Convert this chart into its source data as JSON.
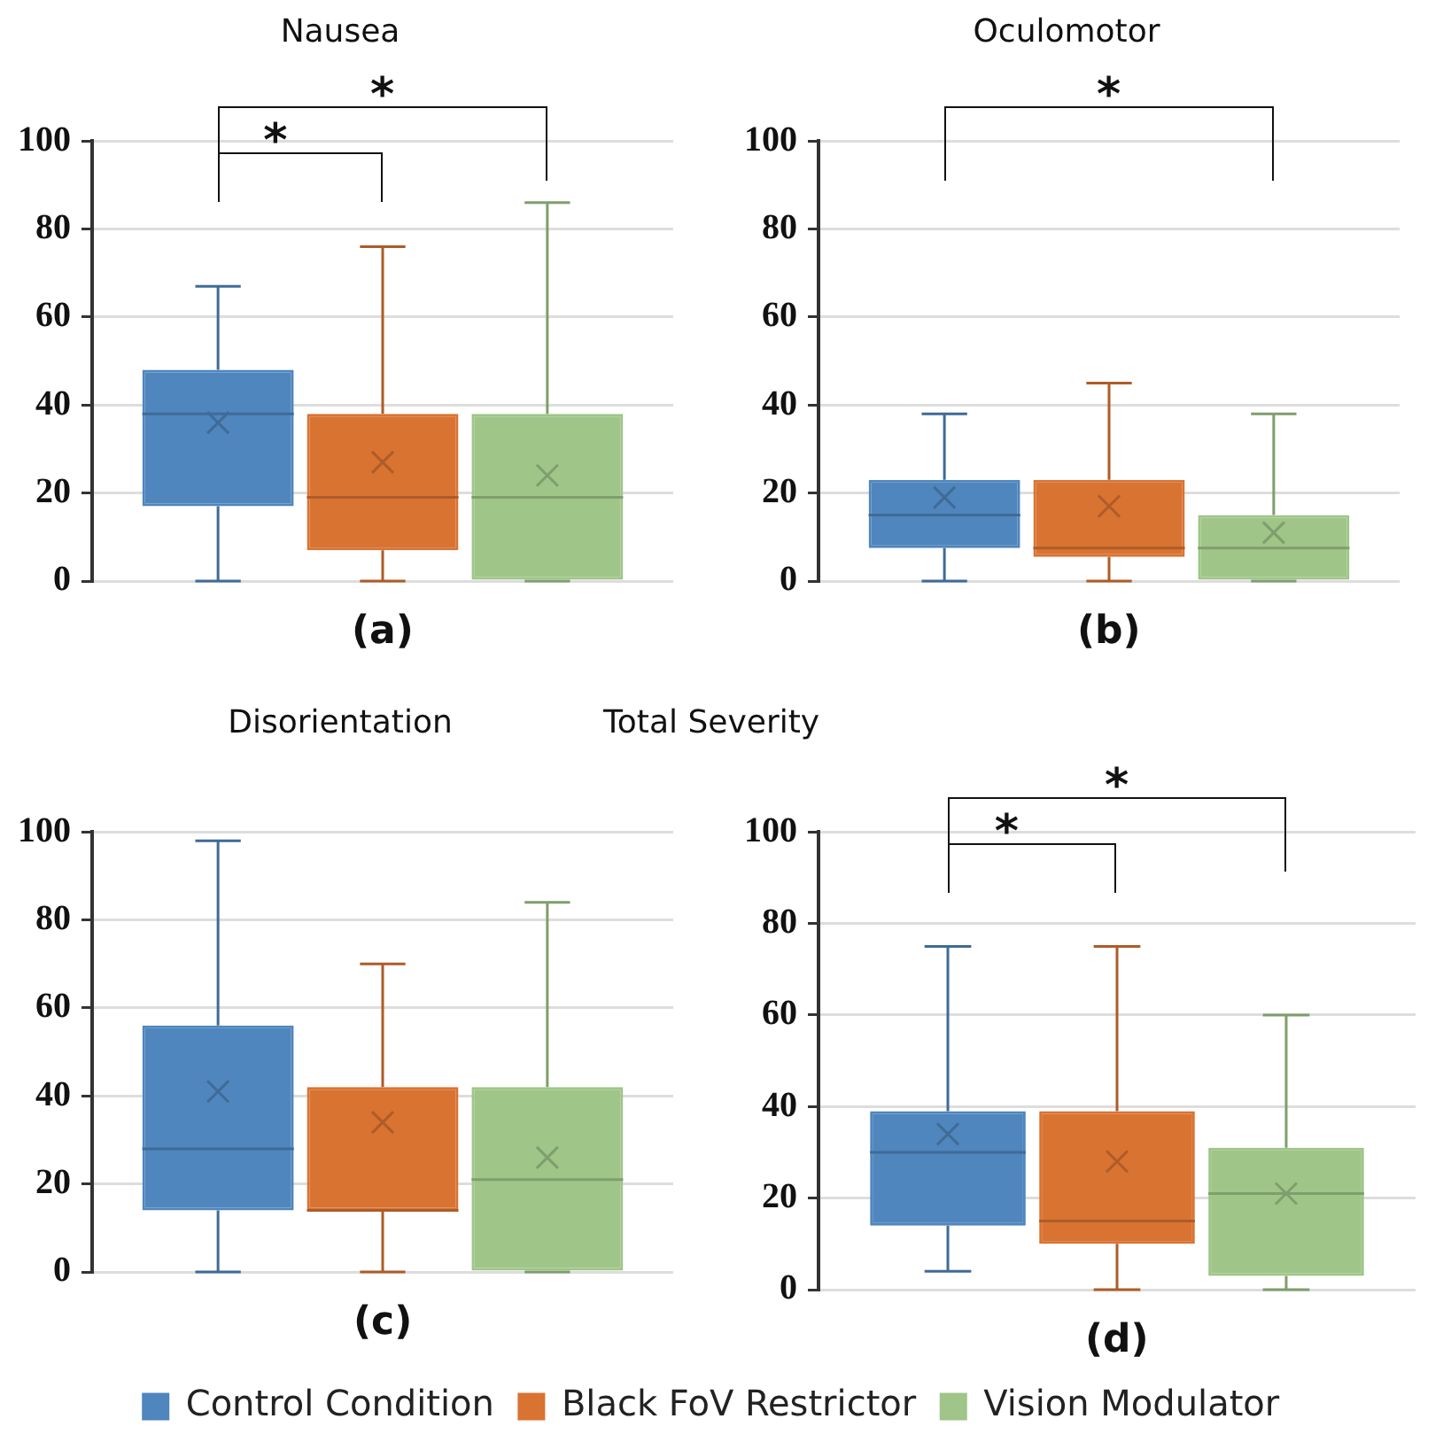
{
  "chart_data": [
    {
      "type": "box",
      "title": "Nausea",
      "categories": [
        null
      ],
      "ylim": [
        0,
        100
      ],
      "yticks": [
        0,
        20,
        40,
        60,
        80,
        100
      ],
      "grid": "y",
      "tick_labels": "y",
      "marker": "cross",
      "annotations": [
        "*",
        "*",
        "(a)"
      ],
      "series": [
        {
          "color": "#4f86bd",
          "boxes": [
            {
              "low": 0,
              "q1": 17,
              "median": 38,
              "q3": 48,
              "high": 67,
              "mean": 36
            }
          ]
        },
        {
          "color": "#d97332",
          "boxes": [
            {
              "low": 0,
              "q1": 7,
              "median": 19,
              "q3": 38,
              "high": 76,
              "mean": 27
            }
          ]
        },
        {
          "color": "#9fc588",
          "boxes": [
            {
              "low": 0,
              "q1": 0,
              "median": 19,
              "q3": 38,
              "high": 86,
              "mean": 24
            }
          ]
        }
      ]
    },
    {
      "type": "box",
      "title": "Oculomotor",
      "categories": [
        null
      ],
      "ylim": [
        0,
        100
      ],
      "yticks": [
        0,
        20,
        40,
        60,
        80,
        100
      ],
      "grid": "y",
      "tick_labels": "y",
      "marker": "cross",
      "annotations": [
        "*",
        "(b)"
      ],
      "series": [
        {
          "color": "#4f86bd",
          "boxes": [
            {
              "low": 0,
              "q1": 7.5,
              "median": 15,
              "q3": 23,
              "high": 38,
              "mean": 19
            }
          ]
        },
        {
          "color": "#d97332",
          "boxes": [
            {
              "low": 0,
              "q1": 5.5,
              "median": 7.5,
              "q3": 23,
              "high": 45,
              "mean": 17
            }
          ]
        },
        {
          "color": "#9fc588",
          "boxes": [
            {
              "low": 0,
              "q1": 0,
              "median": 7.5,
              "q3": 15,
              "high": 38,
              "mean": 11
            }
          ]
        }
      ]
    },
    {
      "type": "box",
      "title": "Disorientation",
      "categories": [
        null
      ],
      "ylim": [
        0,
        100
      ],
      "yticks": [
        0,
        20,
        40,
        60,
        80,
        100
      ],
      "grid": "y",
      "tick_labels": "y",
      "marker": "cross",
      "annotations": [
        "(c)"
      ],
      "series": [
        {
          "color": "#4f86bd",
          "boxes": [
            {
              "low": 0,
              "q1": 14,
              "median": 28,
              "q3": 56,
              "high": 98,
              "mean": 41
            }
          ]
        },
        {
          "color": "#d97332",
          "boxes": [
            {
              "low": 0,
              "q1": 14,
              "median": 14,
              "q3": 42,
              "high": 70,
              "mean": 34
            }
          ]
        },
        {
          "color": "#9fc588",
          "boxes": [
            {
              "low": 0,
              "q1": 0,
              "median": 21,
              "q3": 42,
              "high": 84,
              "mean": 26
            }
          ]
        }
      ]
    },
    {
      "type": "box",
      "title": "Total Severity",
      "categories": [
        null
      ],
      "ylim": [
        0,
        100
      ],
      "yticks": [
        0,
        20,
        40,
        60,
        80,
        100
      ],
      "grid": "y",
      "tick_labels": "y",
      "marker": "cross",
      "legend": "bottom",
      "annotations": [
        "*",
        "*",
        "(d)"
      ],
      "series": [
        {
          "name": "Control Condition",
          "color": "#4f86bd",
          "boxes": [
            {
              "low": 4,
              "q1": 14,
              "median": 30,
              "q3": 39,
              "high": 75,
              "mean": 34
            }
          ]
        },
        {
          "name": "Black FoV Restrictor",
          "color": "#d97332",
          "boxes": [
            {
              "low": 0,
              "q1": 10,
              "median": 15,
              "q3": 39,
              "high": 75,
              "mean": 28
            }
          ]
        },
        {
          "name": "Vision Modulator",
          "color": "#9fc588",
          "boxes": [
            {
              "low": 0,
              "q1": 3,
              "median": 21,
              "q3": 31,
              "high": 60,
              "mean": 21
            }
          ]
        }
      ]
    }
  ]
}
